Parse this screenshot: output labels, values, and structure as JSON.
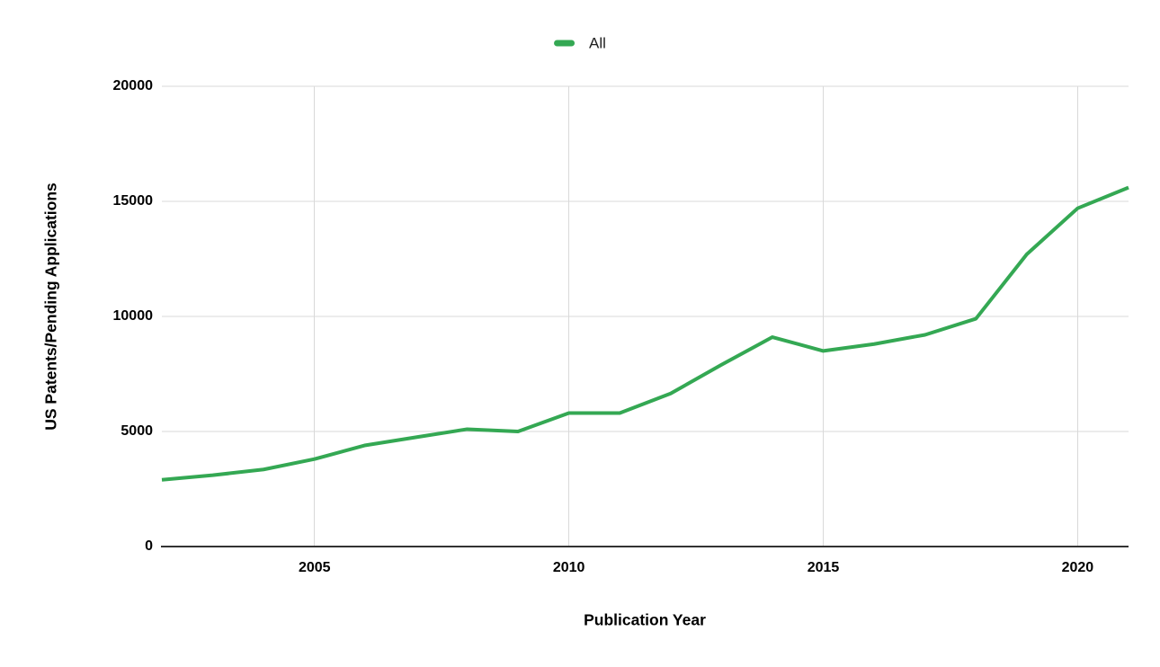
{
  "page": {
    "background": "#ffffff"
  },
  "legend": {
    "label": "All",
    "swatch_color": "#34a853",
    "position": "top-center"
  },
  "chart_data": {
    "type": "line",
    "xlabel": "Publication Year",
    "ylabel": "US Patents/Pending Applications",
    "series": [
      {
        "name": "All",
        "color": "#34a853",
        "x": [
          2002,
          2003,
          2004,
          2005,
          2006,
          2007,
          2008,
          2009,
          2010,
          2011,
          2012,
          2013,
          2014,
          2015,
          2016,
          2017,
          2018,
          2019,
          2020,
          2021
        ],
        "values": [
          2900,
          3100,
          3350,
          3800,
          4400,
          4750,
          5100,
          5000,
          5800,
          5800,
          6650,
          7900,
          9100,
          8500,
          8800,
          9200,
          9900,
          12700,
          14700,
          15600
        ]
      }
    ],
    "xlim": [
      2002,
      2021
    ],
    "ylim": [
      0,
      20000
    ],
    "x_ticks": [
      2005,
      2010,
      2015,
      2020
    ],
    "y_ticks": [
      0,
      5000,
      10000,
      15000,
      20000
    ],
    "grid": true,
    "gridline_color": "#d9d9d9",
    "axis_line_color": "#333333",
    "tick_label_color": "#000000",
    "legend_position": "top-center",
    "line_width": 4
  }
}
